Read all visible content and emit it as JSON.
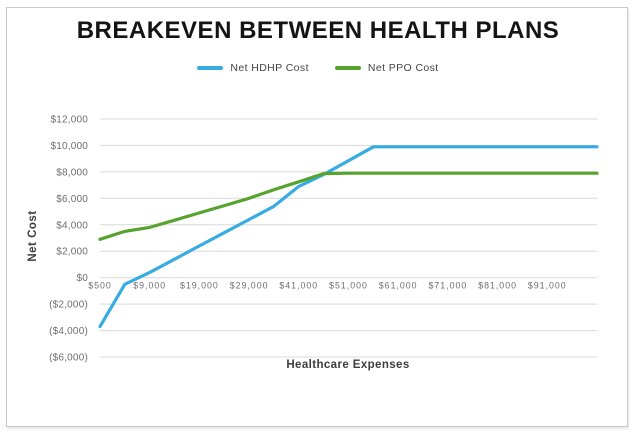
{
  "title": "BREAKEVEN BETWEEN HEALTH PLANS",
  "legend": [
    {
      "label": "Net HDHP Cost",
      "color": "#36ACE2"
    },
    {
      "label": "Net PPO Cost",
      "color": "#56A42F"
    }
  ],
  "axes": {
    "y_title": "Net Cost",
    "x_title": "Healthcare Expenses"
  },
  "chart_data": {
    "type": "line",
    "title": "BREAKEVEN BETWEEN HEALTH PLANS",
    "xlabel": "Healthcare Expenses",
    "ylabel": "Net Cost",
    "ylim": [
      -6000,
      12000
    ],
    "grid": "horizontal",
    "grid_color": "#d9d9d9",
    "legend_position": "top",
    "x_label_interval": 2,
    "x_tick_labels": [
      "$500",
      "$9,000",
      "$19,000",
      "$29,000",
      "$41,000",
      "$51,000",
      "$61,000",
      "$71,000",
      "$81,000",
      "$91,000"
    ],
    "y_ticks": [
      {
        "value": 12000,
        "label": "$12,000"
      },
      {
        "value": 10000,
        "label": "$10,000"
      },
      {
        "value": 8000,
        "label": "$8,000"
      },
      {
        "value": 6000,
        "label": "$6,000"
      },
      {
        "value": 4000,
        "label": "$4,000"
      },
      {
        "value": 2000,
        "label": "$2,000"
      },
      {
        "value": 0,
        "label": "$0"
      },
      {
        "value": -2000,
        "label": "($2,000)"
      },
      {
        "value": -4000,
        "label": "($4,000)"
      },
      {
        "value": -6000,
        "label": "($6,000)"
      }
    ],
    "x_estimated": [
      500,
      5000,
      9000,
      14000,
      19000,
      24000,
      29000,
      35000,
      41000,
      46000,
      51000,
      56000,
      61000,
      66000,
      71000,
      76000,
      81000,
      86000,
      91000,
      96000,
      101000
    ],
    "series": [
      {
        "name": "Net HDHP Cost",
        "color": "#36ACE2",
        "values": [
          -3700,
          -500,
          400,
          1400,
          2400,
          3400,
          4400,
          5400,
          6900,
          7800,
          8850,
          9900,
          9900,
          9900,
          9900,
          9900,
          9900,
          9900,
          9900,
          9900,
          9900
        ]
      },
      {
        "name": "Net PPO Cost",
        "color": "#56A42F",
        "values": [
          2900,
          3500,
          3800,
          4350,
          4900,
          5450,
          6000,
          6650,
          7250,
          7870,
          7900,
          7900,
          7900,
          7900,
          7900,
          7900,
          7900,
          7900,
          7900,
          7900,
          7900
        ]
      }
    ]
  }
}
